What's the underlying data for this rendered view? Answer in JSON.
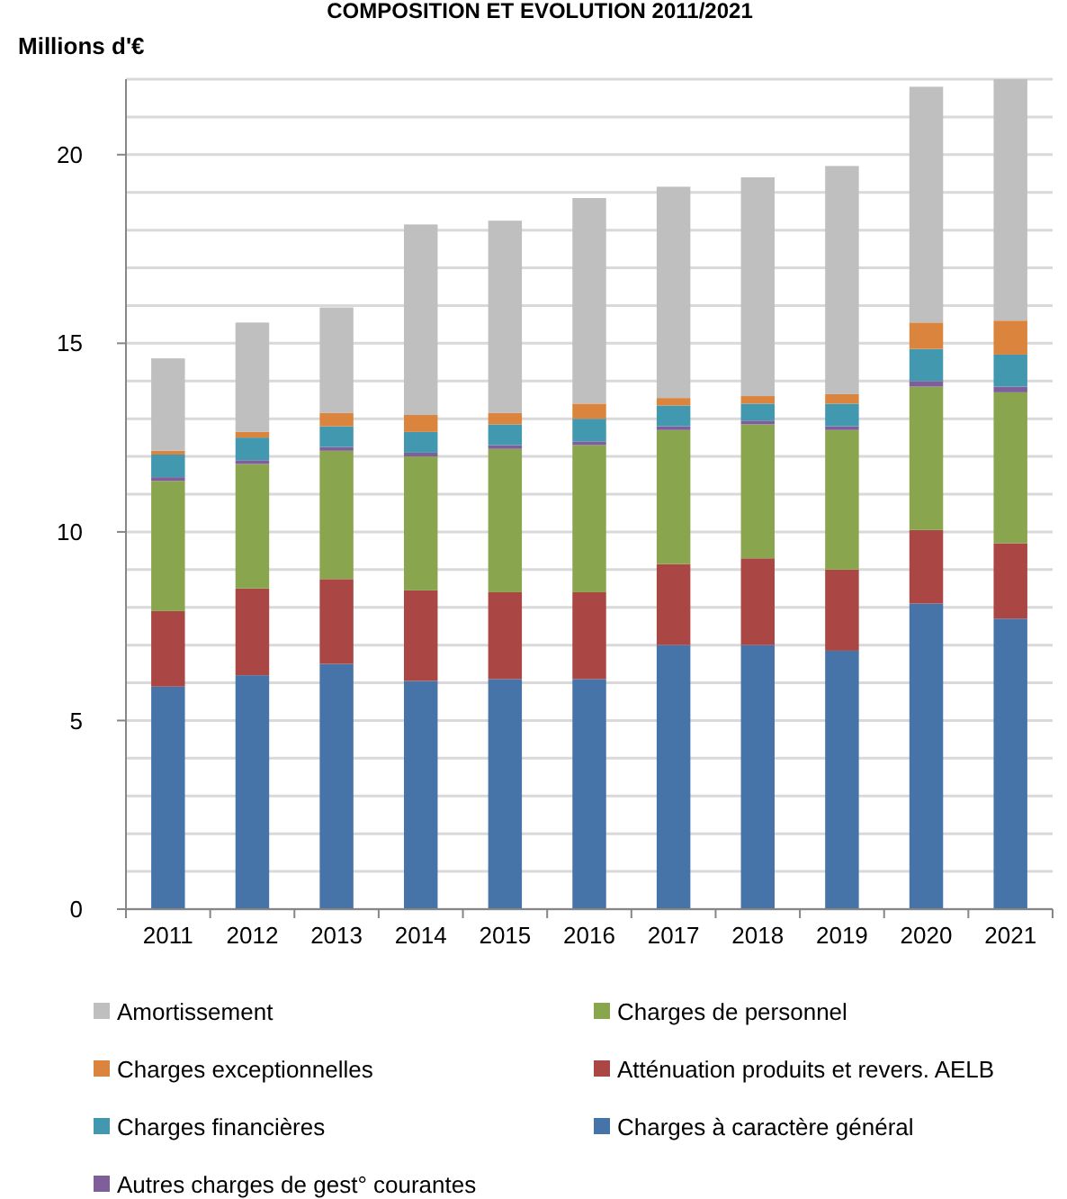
{
  "chart_data": {
    "type": "bar",
    "stacked": true,
    "title": "COMPOSITION ET EVOLUTION 2011/2021",
    "ylabel": "Millions d'€",
    "categories": [
      "2011",
      "2012",
      "2013",
      "2014",
      "2015",
      "2016",
      "2017",
      "2018",
      "2019",
      "2020",
      "2021"
    ],
    "series": [
      {
        "name": "Charges à caractère général",
        "color": "#4674a8",
        "values": [
          5.9,
          6.2,
          6.5,
          6.05,
          6.1,
          6.1,
          7.0,
          7.0,
          6.85,
          8.1,
          7.7
        ]
      },
      {
        "name": "Atténuation produits et revers. AELB",
        "color": "#aa4643",
        "values": [
          2.0,
          2.3,
          2.25,
          2.4,
          2.3,
          2.3,
          2.15,
          2.3,
          2.15,
          1.95,
          2.0
        ]
      },
      {
        "name": "Charges de personnel",
        "color": "#89a54e",
        "values": [
          3.45,
          3.3,
          3.4,
          3.55,
          3.8,
          3.9,
          3.55,
          3.55,
          3.7,
          3.8,
          4.0
        ]
      },
      {
        "name": "Autres charges de gest° courantes",
        "color": "#7f5f9a",
        "values": [
          0.1,
          0.1,
          0.1,
          0.1,
          0.1,
          0.1,
          0.1,
          0.1,
          0.1,
          0.15,
          0.15
        ]
      },
      {
        "name": "Charges financières",
        "color": "#4198af",
        "values": [
          0.6,
          0.6,
          0.55,
          0.55,
          0.55,
          0.6,
          0.55,
          0.45,
          0.6,
          0.85,
          0.85
        ]
      },
      {
        "name": "Charges exceptionnelles",
        "color": "#db843d",
        "values": [
          0.1,
          0.15,
          0.35,
          0.45,
          0.3,
          0.4,
          0.2,
          0.2,
          0.25,
          0.7,
          0.9
        ]
      },
      {
        "name": "Amortissement",
        "color": "#bfbfbf",
        "values": [
          2.45,
          2.9,
          2.8,
          5.05,
          5.1,
          5.45,
          5.6,
          5.8,
          6.05,
          6.25,
          6.4
        ]
      }
    ],
    "ylim": [
      0,
      22
    ],
    "yticks": [
      0,
      {
        "value": 1,
        "label": null
      },
      {
        "value": 2,
        "label": null
      },
      {
        "value": 3,
        "label": null
      },
      {
        "value": 4,
        "label": null
      },
      5,
      {
        "value": 6,
        "label": null
      },
      {
        "value": 7,
        "label": null
      },
      {
        "value": 8,
        "label": null
      },
      {
        "value": 9,
        "label": null
      },
      10,
      {
        "value": 11,
        "label": null
      },
      {
        "value": 12,
        "label": null
      },
      {
        "value": 13,
        "label": null
      },
      {
        "value": 14,
        "label": null
      },
      15,
      {
        "value": 16,
        "label": null
      },
      {
        "value": 17,
        "label": null
      },
      {
        "value": 18,
        "label": null
      },
      {
        "value": 19,
        "label": null
      },
      20,
      {
        "value": 21,
        "label": null
      },
      {
        "value": 22,
        "label": null
      }
    ],
    "grid": "y",
    "legend": "bottom"
  }
}
